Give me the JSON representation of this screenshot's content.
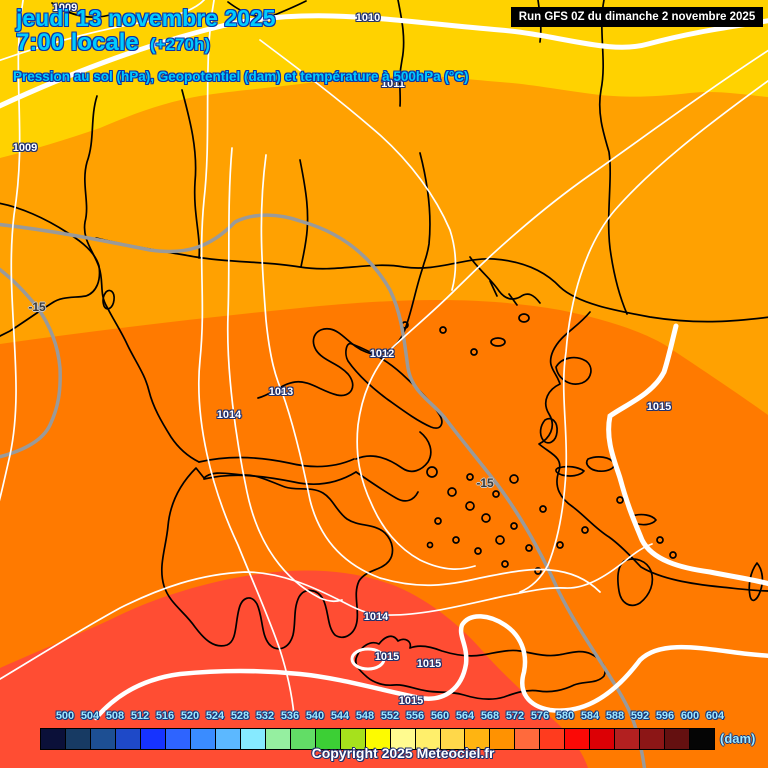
{
  "header": {
    "date_line": "jeudi 13 novembre 2025",
    "time_line": "7:00 locale",
    "run_offset": "(+270h)",
    "subtitle": "Pression au sol (hPa), Geopotentiel (dam) et température à 500hPa (°C)",
    "run_info": "Run GFS 0Z du dimanche 2 novembre 2025"
  },
  "footer": {
    "copyright": "Copyright 2025 Meteociel.fr"
  },
  "colorbar": {
    "unit": "(dam)",
    "values": [
      500,
      504,
      508,
      512,
      516,
      520,
      524,
      528,
      532,
      536,
      540,
      544,
      548,
      552,
      556,
      560,
      564,
      568,
      572,
      576,
      580,
      584,
      588,
      592,
      596,
      600,
      604
    ],
    "colors": [
      "#0b1039",
      "#173a63",
      "#1d4f93",
      "#1e49c8",
      "#1633ff",
      "#2e64ff",
      "#3a8cff",
      "#5cb8ff",
      "#86eaff",
      "#95efa0",
      "#62dd66",
      "#3ccf35",
      "#a6e11c",
      "#fdfb00",
      "#fffb8f",
      "#ffef6b",
      "#ffd84a",
      "#ffb411",
      "#ff9201",
      "#ff6a3c",
      "#ff3b1e",
      "#fb0906",
      "#dc0005",
      "#b22020",
      "#8c1616",
      "#641010",
      "#050505"
    ]
  },
  "map": {
    "band_colors": {
      "yellow": "#ffd200",
      "orange": "#ffa101",
      "dark_orange": "#ff7a00",
      "red": "#ff4d33"
    },
    "line_colors": {
      "isobar_white": "#ffffff",
      "isotherm_gray": "#9a9a9a",
      "coastline_black": "#000000"
    },
    "pressure_labels": [
      {
        "text": "1009"
      },
      {
        "text": "1009"
      },
      {
        "text": "1010"
      },
      {
        "text": "1011"
      },
      {
        "text": "1012"
      },
      {
        "text": "1013"
      },
      {
        "text": "1014"
      },
      {
        "text": "1015"
      },
      {
        "text": "1014"
      },
      {
        "text": "1015"
      },
      {
        "text": "1015"
      },
      {
        "text": "1015"
      }
    ],
    "temperature_labels": [
      {
        "text": "-15"
      },
      {
        "text": "-15"
      }
    ]
  }
}
